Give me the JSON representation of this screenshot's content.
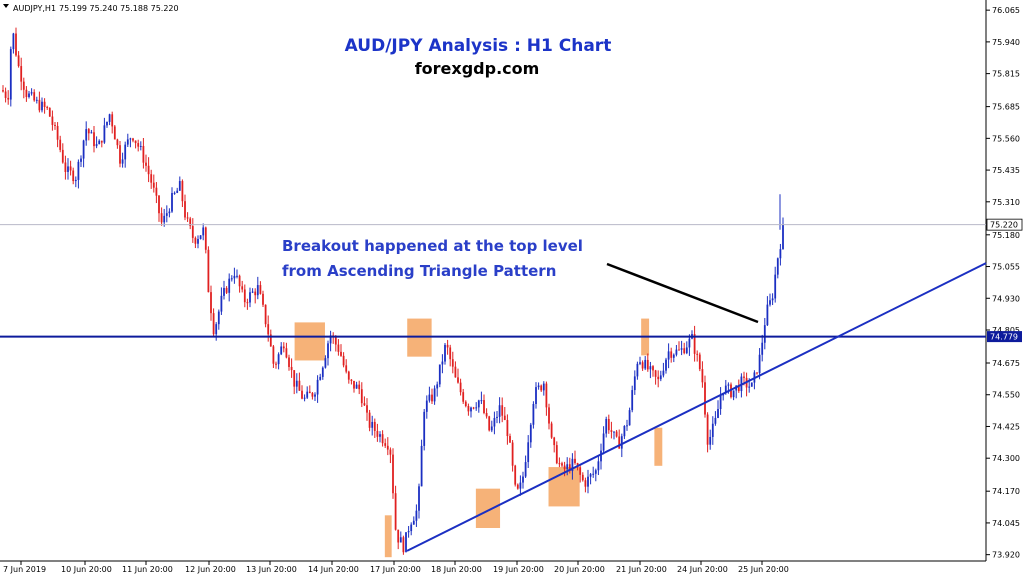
{
  "header": {
    "symbol": "AUDJPY,H1",
    "ohlc": "75.199 75.240 75.188 75.220"
  },
  "chart_data": {
    "type": "candlestick",
    "title": "AUD/JPY Analysis : H1 Chart",
    "subtitle": "forexgdp.com",
    "annotation_lines": [
      "Breakout happened at the top level",
      "from Ascending Triangle Pattern"
    ],
    "y_ticks": [
      76.065,
      75.94,
      75.815,
      75.685,
      75.56,
      75.435,
      75.31,
      75.18,
      75.055,
      74.93,
      74.805,
      74.675,
      74.55,
      74.425,
      74.3,
      74.17,
      74.045,
      73.92
    ],
    "ylim": [
      73.895,
      76.105
    ],
    "x_ticks": [
      "7 Jun 2019",
      "10 Jun 20:00",
      "11 Jun 20:00",
      "12 Jun 20:00",
      "13 Jun 20:00",
      "14 Jun 20:00",
      "17 Jun 20:00",
      "18 Jun 20:00",
      "19 Jun 20:00",
      "20 Jun 20:00",
      "21 Jun 20:00",
      "24 Jun 20:00",
      "25 Jun 20:00"
    ],
    "current_price": 75.22,
    "current_price_label": "75.220",
    "resistance_level": 74.779,
    "resistance_label": "74.779",
    "trendline": {
      "from": {
        "x": "17 Jun 20:00",
        "y": 73.935
      },
      "to": {
        "x": "25 Jun 20:00",
        "y": 74.63
      }
    },
    "price_path": [
      [
        0,
        75.76
      ],
      [
        8,
        75.72
      ],
      [
        12,
        76.0
      ],
      [
        18,
        75.85
      ],
      [
        26,
        75.74
      ],
      [
        36,
        75.7
      ],
      [
        48,
        75.67
      ],
      [
        58,
        75.55
      ],
      [
        66,
        75.43
      ],
      [
        76,
        75.41
      ],
      [
        86,
        75.6
      ],
      [
        98,
        75.52
      ],
      [
        110,
        75.66
      ],
      [
        120,
        75.48
      ],
      [
        132,
        75.58
      ],
      [
        142,
        75.5
      ],
      [
        152,
        75.38
      ],
      [
        162,
        75.22
      ],
      [
        172,
        75.32
      ],
      [
        180,
        75.37
      ],
      [
        186,
        75.24
      ],
      [
        194,
        75.16
      ],
      [
        204,
        75.2
      ],
      [
        208,
        74.98
      ],
      [
        214,
        74.8
      ],
      [
        222,
        74.93
      ],
      [
        234,
        75.04
      ],
      [
        244,
        74.92
      ],
      [
        258,
        74.97
      ],
      [
        268,
        74.8
      ],
      [
        274,
        74.66
      ],
      [
        284,
        74.76
      ],
      [
        294,
        74.6
      ],
      [
        304,
        74.53
      ],
      [
        314,
        74.56
      ],
      [
        324,
        74.69
      ],
      [
        330,
        74.79
      ],
      [
        340,
        74.72
      ],
      [
        348,
        74.6
      ],
      [
        360,
        74.57
      ],
      [
        368,
        74.44
      ],
      [
        380,
        74.39
      ],
      [
        390,
        74.35
      ],
      [
        396,
        74.0
      ],
      [
        404,
        73.95
      ],
      [
        410,
        74.05
      ],
      [
        418,
        74.1
      ],
      [
        424,
        74.5
      ],
      [
        434,
        74.55
      ],
      [
        446,
        74.75
      ],
      [
        456,
        74.6
      ],
      [
        468,
        74.5
      ],
      [
        480,
        74.53
      ],
      [
        490,
        74.4
      ],
      [
        500,
        74.5
      ],
      [
        508,
        74.4
      ],
      [
        516,
        74.15
      ],
      [
        522,
        74.2
      ],
      [
        534,
        74.55
      ],
      [
        544,
        74.6
      ],
      [
        552,
        74.35
      ],
      [
        562,
        74.25
      ],
      [
        574,
        74.28
      ],
      [
        584,
        74.2
      ],
      [
        596,
        74.25
      ],
      [
        606,
        74.45
      ],
      [
        618,
        74.35
      ],
      [
        628,
        74.45
      ],
      [
        638,
        74.7
      ],
      [
        648,
        74.65
      ],
      [
        658,
        74.6
      ],
      [
        668,
        74.72
      ],
      [
        680,
        74.72
      ],
      [
        692,
        74.77
      ],
      [
        702,
        74.62
      ],
      [
        708,
        74.36
      ],
      [
        716,
        74.45
      ],
      [
        722,
        74.58
      ],
      [
        732,
        74.56
      ],
      [
        742,
        74.6
      ],
      [
        752,
        74.58
      ],
      [
        760,
        74.7
      ],
      [
        766,
        74.87
      ],
      [
        772,
        74.93
      ],
      [
        778,
        75.1
      ],
      [
        784,
        75.22
      ]
    ],
    "highlight_boxes": [
      {
        "x0": 14.23,
        "x1": 14.72,
        "y0": 74.835,
        "y1": 74.685
      },
      {
        "x0": 18.05,
        "x1": 18.45,
        "y0": 74.85,
        "y1": 74.7
      },
      {
        "x0": 19.17,
        "x1": 19.56,
        "y0": 74.18,
        "y1": 74.025
      },
      {
        "x0": 20.35,
        "x1": 20.86,
        "y0": 74.265,
        "y1": 74.11
      },
      {
        "x0": 21.89,
        "x1": 22.28,
        "y0": 74.85,
        "y1": 74.705
      },
      {
        "x0": 22.54,
        "x1": 22.93,
        "y0": 74.42,
        "y1": 74.27
      },
      {
        "x0": 17.39,
        "x1": 17.72,
        "y0": 74.075,
        "y1": 73.91
      }
    ],
    "grid": false
  }
}
